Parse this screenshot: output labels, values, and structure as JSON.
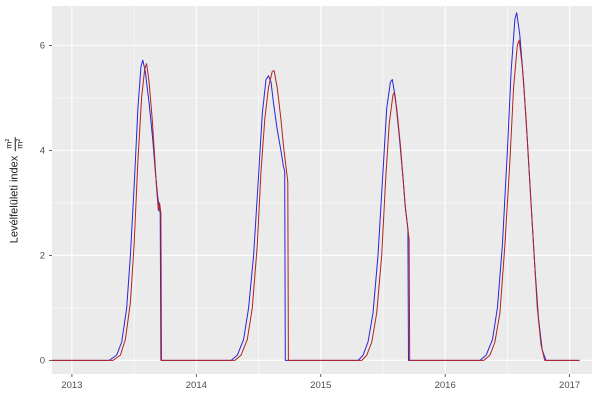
{
  "figure": {
    "background": "#FFFFFF",
    "panel_background": "#EBEBEB",
    "grid_major_color": "#FFFFFF",
    "grid_minor_color": "#FFFFFF",
    "axis_text_color": "#4D4D4D",
    "tick_color": "#333333"
  },
  "ylabel": {
    "text": "Levélfelületi index",
    "frac_numerator": "m²",
    "frac_denominator": "m²"
  },
  "chart_data": {
    "type": "line",
    "title": "",
    "xlabel": "",
    "ylabel": "Levélfelületi index m²/m²",
    "legend": null,
    "grid": true,
    "xlim": [
      2012.84,
      2017.18
    ],
    "ylim": [
      -0.26,
      6.75
    ],
    "x_ticks": [
      2013,
      2014,
      2015,
      2016,
      2017
    ],
    "y_ticks": [
      0,
      2,
      4,
      6
    ],
    "x_minor_ticks": [
      2013.5,
      2014.5,
      2015.5,
      2016.5
    ],
    "y_minor_ticks": [
      1,
      3,
      5
    ],
    "series": [
      {
        "name": "blue-series",
        "color": "#2626D8",
        "points": [
          [
            2012.84,
            0
          ],
          [
            2013.3,
            0
          ],
          [
            2013.36,
            0.1
          ],
          [
            2013.4,
            0.35
          ],
          [
            2013.44,
            1.0
          ],
          [
            2013.47,
            2.0
          ],
          [
            2013.5,
            3.3
          ],
          [
            2013.53,
            4.8
          ],
          [
            2013.555,
            5.6
          ],
          [
            2013.57,
            5.72
          ],
          [
            2013.59,
            5.5
          ],
          [
            2013.62,
            4.9
          ],
          [
            2013.65,
            4.2
          ],
          [
            2013.67,
            3.6
          ],
          [
            2013.69,
            3.1
          ],
          [
            2013.71,
            2.8
          ],
          [
            2013.715,
            0
          ],
          [
            2014.28,
            0
          ],
          [
            2014.33,
            0.1
          ],
          [
            2014.38,
            0.4
          ],
          [
            2014.42,
            1.0
          ],
          [
            2014.46,
            2.0
          ],
          [
            2014.5,
            3.5
          ],
          [
            2014.53,
            4.7
          ],
          [
            2014.56,
            5.35
          ],
          [
            2014.58,
            5.42
          ],
          [
            2014.6,
            5.3
          ],
          [
            2014.62,
            4.9
          ],
          [
            2014.65,
            4.4
          ],
          [
            2014.68,
            4.0
          ],
          [
            2014.7,
            3.7
          ],
          [
            2014.71,
            3.6
          ],
          [
            2014.715,
            0
          ],
          [
            2015.3,
            0
          ],
          [
            2015.34,
            0.1
          ],
          [
            2015.38,
            0.35
          ],
          [
            2015.42,
            0.9
          ],
          [
            2015.46,
            2.0
          ],
          [
            2015.5,
            3.6
          ],
          [
            2015.53,
            4.8
          ],
          [
            2015.56,
            5.3
          ],
          [
            2015.575,
            5.35
          ],
          [
            2015.6,
            5.0
          ],
          [
            2015.63,
            4.3
          ],
          [
            2015.66,
            3.5
          ],
          [
            2015.68,
            2.9
          ],
          [
            2015.7,
            2.5
          ],
          [
            2015.705,
            0
          ],
          [
            2016.28,
            0
          ],
          [
            2016.33,
            0.1
          ],
          [
            2016.38,
            0.4
          ],
          [
            2016.42,
            1.0
          ],
          [
            2016.46,
            2.2
          ],
          [
            2016.5,
            4.0
          ],
          [
            2016.53,
            5.5
          ],
          [
            2016.56,
            6.5
          ],
          [
            2016.575,
            6.62
          ],
          [
            2016.6,
            6.2
          ],
          [
            2016.63,
            5.3
          ],
          [
            2016.66,
            4.2
          ],
          [
            2016.69,
            3.0
          ],
          [
            2016.72,
            1.8
          ],
          [
            2016.75,
            0.8
          ],
          [
            2016.78,
            0.2
          ],
          [
            2016.81,
            0
          ],
          [
            2017.08,
            0
          ]
        ]
      },
      {
        "name": "red-series",
        "color": "#B22222",
        "points": [
          [
            2012.84,
            0
          ],
          [
            2013.33,
            0
          ],
          [
            2013.39,
            0.1
          ],
          [
            2013.43,
            0.4
          ],
          [
            2013.47,
            1.1
          ],
          [
            2013.5,
            2.2
          ],
          [
            2013.53,
            3.8
          ],
          [
            2013.56,
            5.0
          ],
          [
            2013.585,
            5.55
          ],
          [
            2013.6,
            5.65
          ],
          [
            2013.62,
            5.3
          ],
          [
            2013.645,
            4.6
          ],
          [
            2013.665,
            3.9
          ],
          [
            2013.68,
            3.3
          ],
          [
            2013.695,
            2.85
          ],
          [
            2013.705,
            3.0
          ],
          [
            2013.715,
            2.8
          ],
          [
            2013.72,
            0
          ],
          [
            2014.31,
            0
          ],
          [
            2014.36,
            0.1
          ],
          [
            2014.41,
            0.4
          ],
          [
            2014.45,
            1.0
          ],
          [
            2014.49,
            2.2
          ],
          [
            2014.52,
            3.6
          ],
          [
            2014.55,
            4.6
          ],
          [
            2014.58,
            5.2
          ],
          [
            2014.61,
            5.5
          ],
          [
            2014.625,
            5.52
          ],
          [
            2014.65,
            5.2
          ],
          [
            2014.68,
            4.6
          ],
          [
            2014.7,
            4.1
          ],
          [
            2014.72,
            3.7
          ],
          [
            2014.735,
            3.4
          ],
          [
            2014.74,
            0
          ],
          [
            2015.33,
            0
          ],
          [
            2015.37,
            0.1
          ],
          [
            2015.41,
            0.35
          ],
          [
            2015.45,
            0.9
          ],
          [
            2015.49,
            2.0
          ],
          [
            2015.52,
            3.4
          ],
          [
            2015.55,
            4.5
          ],
          [
            2015.58,
            5.05
          ],
          [
            2015.59,
            5.1
          ],
          [
            2015.61,
            4.8
          ],
          [
            2015.64,
            4.1
          ],
          [
            2015.66,
            3.5
          ],
          [
            2015.68,
            2.9
          ],
          [
            2015.7,
            2.5
          ],
          [
            2015.71,
            2.3
          ],
          [
            2015.715,
            0
          ],
          [
            2016.31,
            0
          ],
          [
            2016.36,
            0.1
          ],
          [
            2016.4,
            0.35
          ],
          [
            2016.44,
            0.9
          ],
          [
            2016.48,
            2.2
          ],
          [
            2016.52,
            3.8
          ],
          [
            2016.55,
            5.2
          ],
          [
            2016.58,
            6.0
          ],
          [
            2016.595,
            6.1
          ],
          [
            2016.62,
            5.6
          ],
          [
            2016.65,
            4.6
          ],
          [
            2016.68,
            3.4
          ],
          [
            2016.71,
            2.2
          ],
          [
            2016.74,
            1.0
          ],
          [
            2016.77,
            0.3
          ],
          [
            2016.8,
            0
          ],
          [
            2017.08,
            0
          ]
        ]
      }
    ]
  }
}
